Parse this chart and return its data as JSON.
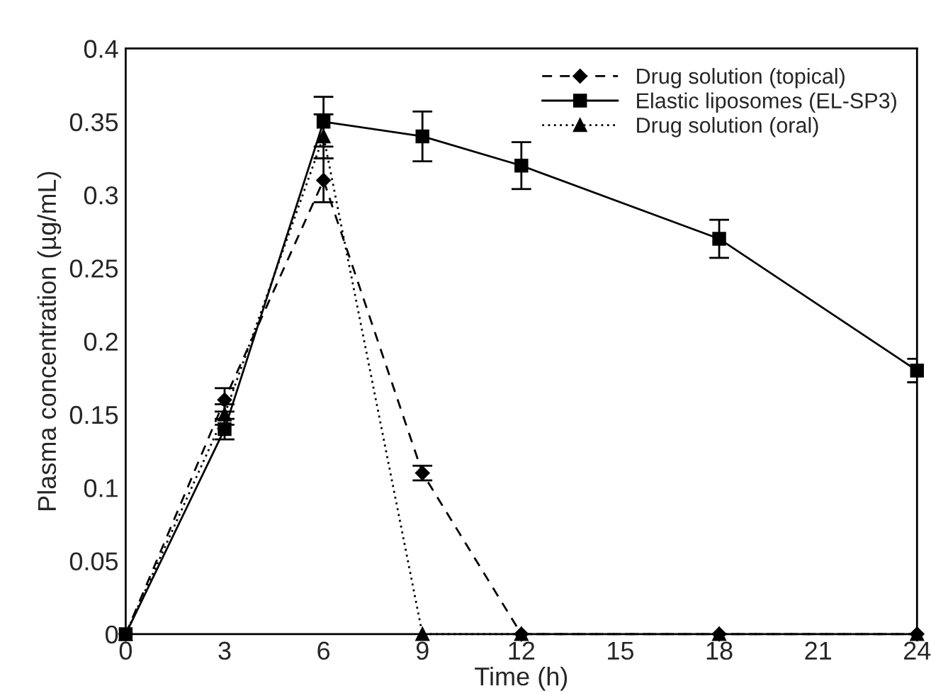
{
  "chart_data": {
    "type": "line",
    "xlabel": "Time (h)",
    "ylabel": "Plasma concentration (µg/mL)",
    "xlim": [
      0,
      24
    ],
    "xticks": [
      0,
      3,
      6,
      9,
      12,
      15,
      18,
      21,
      24
    ],
    "ylim": [
      0,
      0.4
    ],
    "yticks": [
      0,
      0.05,
      0.1,
      0.15,
      0.2,
      0.25,
      0.3,
      0.35,
      0.4
    ],
    "grid": false,
    "legend": "top right",
    "series": [
      {
        "name": "Drug solution (topical)",
        "color": "#000000",
        "marker": "diamond",
        "line_style": "dashed",
        "x": [
          0,
          3,
          6,
          9,
          12,
          18,
          24
        ],
        "values": [
          0,
          0.16,
          0.31,
          0.11,
          0,
          0,
          0
        ],
        "errors": [
          null,
          0.008,
          0.015,
          0.005,
          null,
          null,
          null
        ]
      },
      {
        "name": "Elastic liposomes (EL-SP3)",
        "color": "#000000",
        "marker": "square",
        "line_style": "solid",
        "x": [
          0,
          3,
          6,
          9,
          12,
          18,
          24
        ],
        "values": [
          0,
          0.14,
          0.35,
          0.34,
          0.32,
          0.27,
          0.18
        ],
        "errors": [
          null,
          0.007,
          0.017,
          0.017,
          0.016,
          0.013,
          0.008
        ]
      },
      {
        "name": "Drug solution (oral)",
        "color": "#000000",
        "marker": "triangle",
        "line_style": "dotted",
        "x": [
          0,
          3,
          6,
          9,
          12,
          18,
          24
        ],
        "values": [
          0,
          0.15,
          0.34,
          0,
          0,
          0,
          0
        ],
        "errors": [
          null,
          0.007,
          0.015,
          null,
          null,
          null,
          null
        ]
      }
    ]
  }
}
